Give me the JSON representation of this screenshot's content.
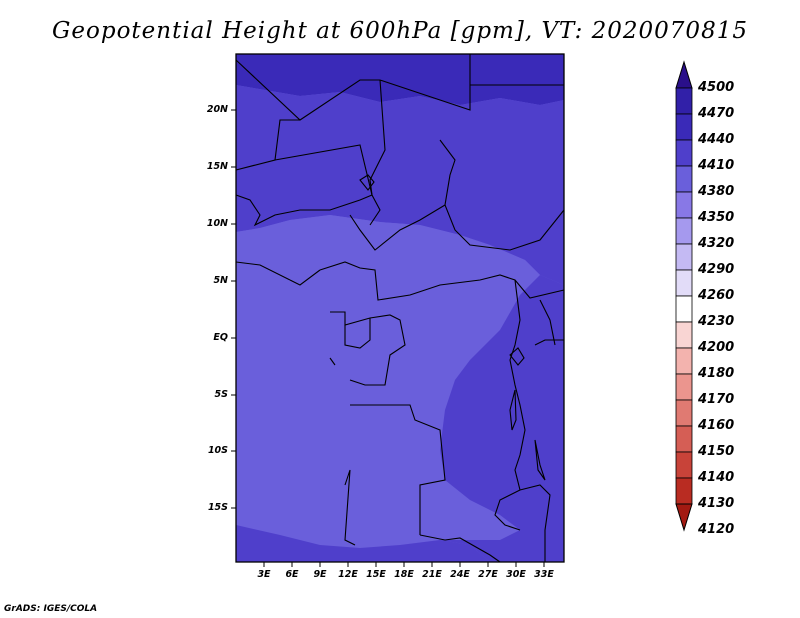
{
  "title": "Geopotential Height at 600hPa [gpm], VT: 2020070815",
  "credit": "GrADS: IGES/COLA",
  "map": {
    "lat_labels": [
      "20N",
      "15N",
      "10N",
      "5N",
      "EQ",
      "5S",
      "10S",
      "15S"
    ],
    "lon_labels": [
      "3E",
      "6E",
      "9E",
      "12E",
      "15E",
      "18E",
      "21E",
      "24E",
      "27E",
      "30E",
      "33E"
    ],
    "land_border_color": "#000000",
    "fill_colors": {
      "level_4380": "#6a5fdb",
      "level_4410": "#4f3fcb",
      "level_4440": "#3a2ab8"
    }
  },
  "colorbar": {
    "levels": [
      "4500",
      "4470",
      "4440",
      "4410",
      "4380",
      "4350",
      "4320",
      "4290",
      "4260",
      "4230",
      "4200",
      "4180",
      "4170",
      "4160",
      "4150",
      "4140",
      "4130",
      "4120"
    ],
    "colors": [
      "#2a0f8a",
      "#3120a8",
      "#3a2ab8",
      "#4f3fcb",
      "#6a5fdb",
      "#8878e6",
      "#a599ee",
      "#c4baf3",
      "#e2dcf8",
      "#ffffff",
      "#f9d5d3",
      "#f3b3ae",
      "#eb958e",
      "#e07a72",
      "#d55e55",
      "#c84339",
      "#b92c22",
      "#a31a12"
    ]
  }
}
